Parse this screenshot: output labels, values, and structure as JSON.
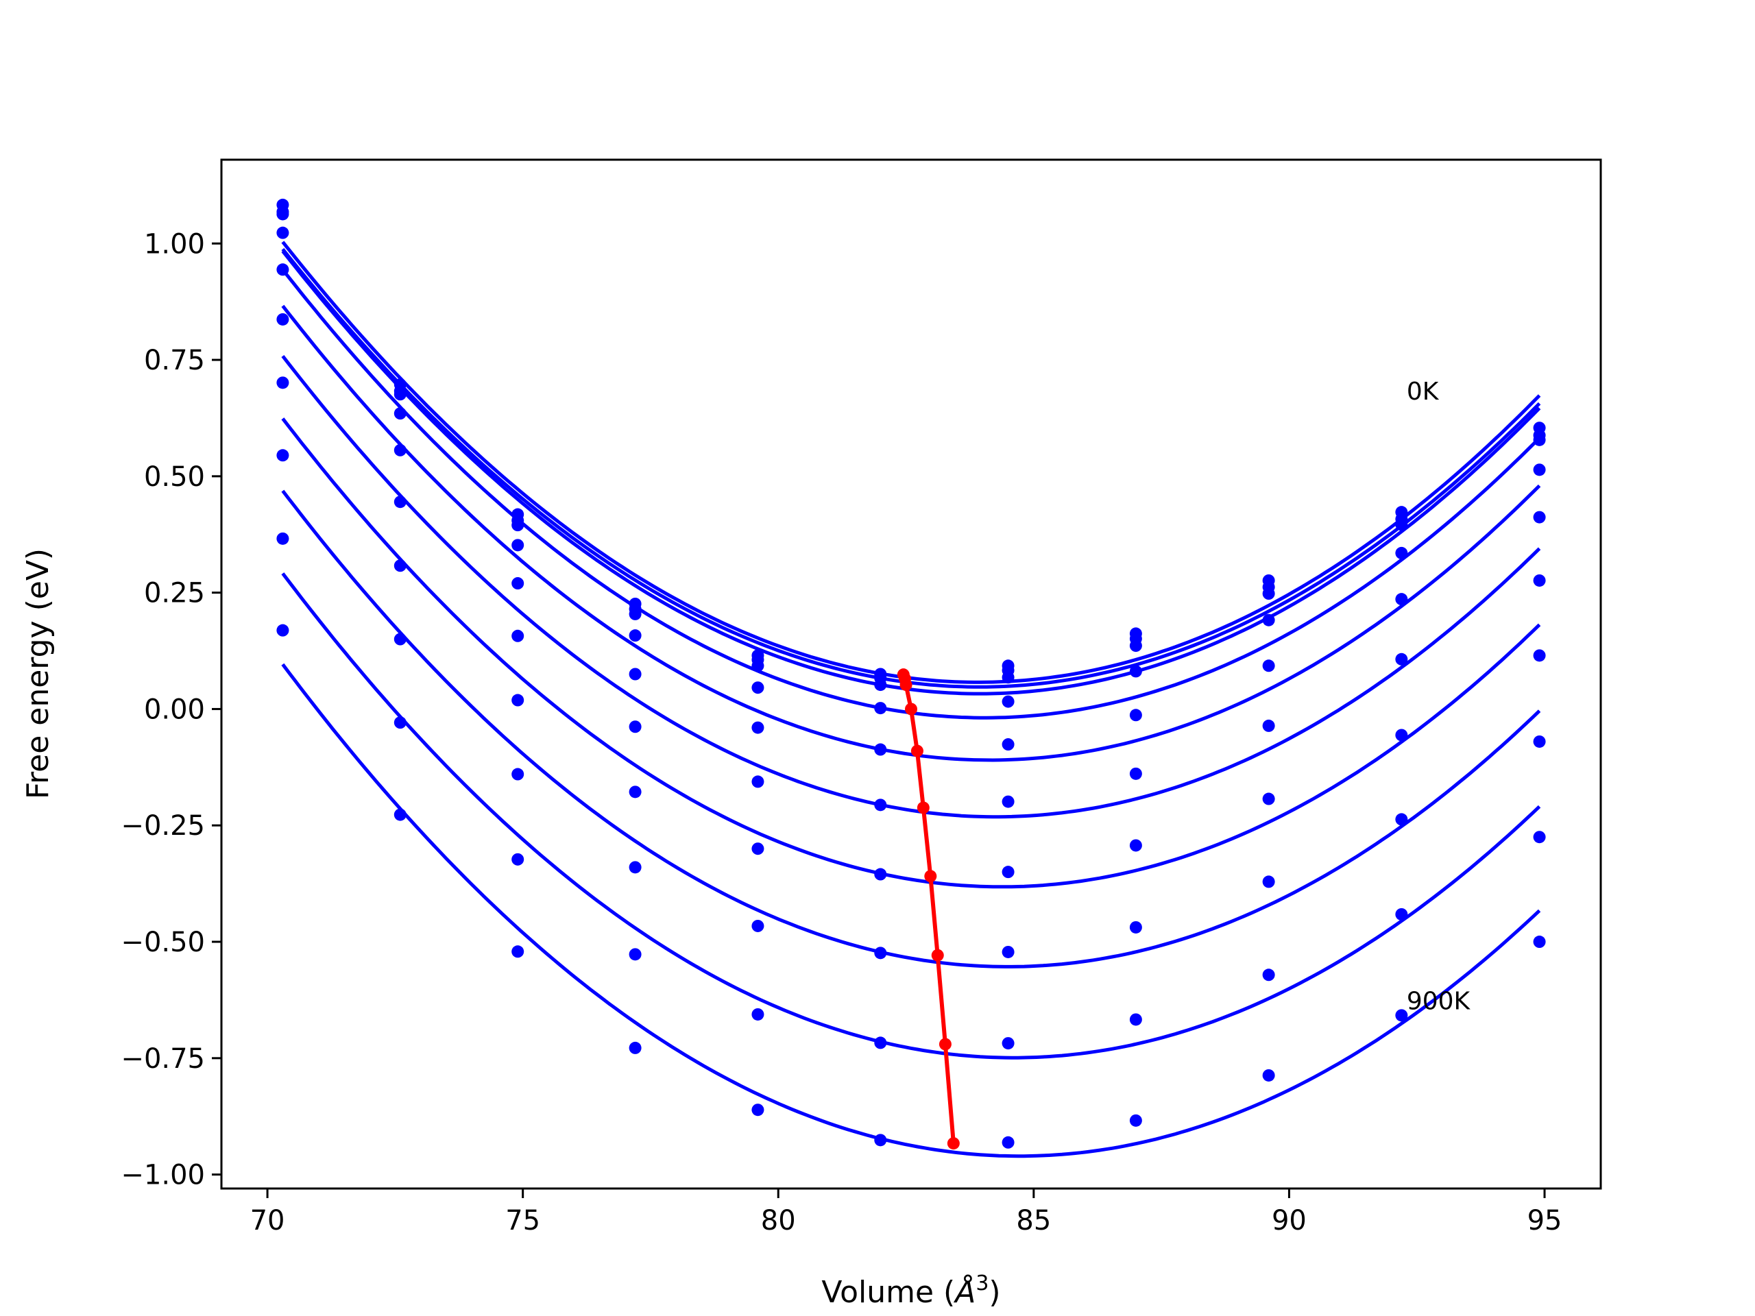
{
  "chart_data": {
    "type": "line",
    "title": "",
    "xlabel_prefix": "Volume (",
    "xlabel_unit": "Å",
    "xlabel_exp": "3",
    "xlabel_suffix": ")",
    "ylabel": "Free energy (eV)",
    "xlim": [
      69.1,
      96.1
    ],
    "ylim": [
      -1.03,
      1.18
    ],
    "xticks": [
      70,
      75,
      80,
      85,
      90,
      95
    ],
    "xtick_labels": [
      "70",
      "75",
      "80",
      "85",
      "90",
      "95"
    ],
    "yticks": [
      1.0,
      0.75,
      0.5,
      0.25,
      0.0,
      -0.25,
      -0.5,
      -0.75,
      -1.0
    ],
    "ytick_labels": [
      "1.00",
      "0.75",
      "0.50",
      "0.25",
      "0.00",
      "−0.25",
      "−0.50",
      "−0.75",
      "−1.00"
    ],
    "grid": false,
    "annotations": [
      {
        "text": "0K",
        "x": 92.3,
        "y": 0.665
      },
      {
        "text": "900K",
        "x": 92.3,
        "y": -0.645
      }
    ],
    "series_color": "#0000ff",
    "min_color": "#ff0000",
    "x": [
      70.3,
      72.6,
      74.9,
      77.2,
      79.6,
      82.0,
      84.5,
      87.0,
      89.6,
      92.2,
      94.9
    ],
    "series": [
      {
        "values": [
          1.083,
          0.697,
          0.418,
          0.226,
          0.115,
          0.075,
          0.093,
          0.162,
          0.276,
          0.423,
          0.604
        ],
        "min": [
          82.45,
          0.074
        ]
      },
      {
        "values": [
          1.068,
          0.683,
          0.405,
          0.215,
          0.106,
          0.066,
          0.083,
          0.151,
          0.262,
          0.408,
          0.588
        ],
        "min": [
          82.48,
          0.065
        ]
      },
      {
        "values": [
          1.063,
          0.676,
          0.395,
          0.204,
          0.093,
          0.052,
          0.068,
          0.136,
          0.248,
          0.396,
          0.578
        ],
        "min": [
          82.5,
          0.052
        ]
      },
      {
        "values": [
          1.023,
          0.635,
          0.352,
          0.158,
          0.046,
          0.002,
          0.016,
          0.081,
          0.191,
          0.335,
          0.514
        ],
        "min": [
          82.6,
          0.0
        ]
      },
      {
        "values": [
          0.944,
          0.556,
          0.27,
          0.075,
          -0.04,
          -0.087,
          -0.076,
          -0.013,
          0.093,
          0.236,
          0.412
        ],
        "min": [
          82.72,
          -0.09
        ]
      },
      {
        "values": [
          0.837,
          0.445,
          0.157,
          -0.038,
          -0.156,
          -0.206,
          -0.199,
          -0.139,
          -0.036,
          0.107,
          0.276
        ],
        "min": [
          82.84,
          -0.212
        ]
      },
      {
        "values": [
          0.701,
          0.308,
          0.019,
          -0.178,
          -0.3,
          -0.355,
          -0.35,
          -0.293,
          -0.193,
          -0.056,
          0.115
        ],
        "min": [
          82.98,
          -0.359
        ]
      },
      {
        "values": [
          0.545,
          0.15,
          -0.14,
          -0.34,
          -0.466,
          -0.524,
          -0.522,
          -0.469,
          -0.371,
          -0.237,
          -0.07
        ],
        "min": [
          83.12,
          -0.529
        ]
      },
      {
        "values": [
          0.366,
          -0.029,
          -0.323,
          -0.527,
          -0.656,
          -0.717,
          -0.718,
          -0.667,
          -0.571,
          -0.441,
          -0.275
        ],
        "min": [
          83.27,
          -0.72
        ]
      },
      {
        "values": [
          0.169,
          -0.227,
          -0.521,
          -0.728,
          -0.861,
          -0.926,
          -0.931,
          -0.884,
          -0.787,
          -0.658,
          -0.5
        ],
        "min": [
          83.43,
          -0.933
        ]
      }
    ]
  }
}
